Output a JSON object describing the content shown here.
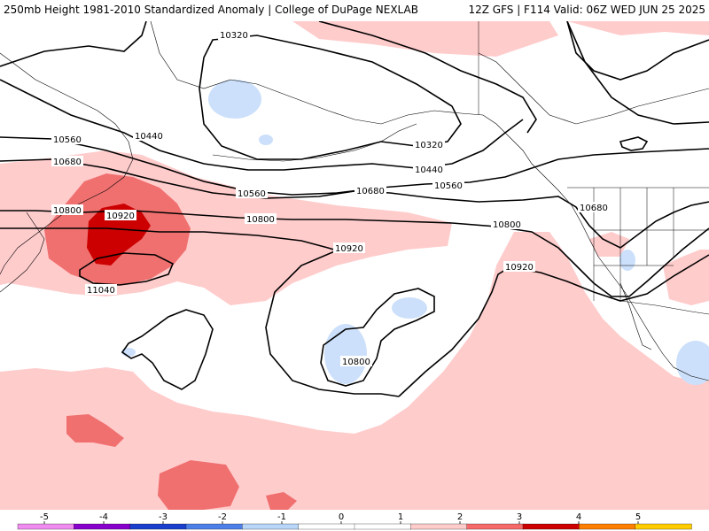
{
  "header": {
    "title_left": "250mb Height 1981-2010 Standardized Anomaly | College of DuPage NEXLAB",
    "title_right": "12Z GFS | F114 Valid: 06Z WED JUN 25 2025"
  },
  "contour_labels": {
    "c10320a": "10320",
    "c10320b": "10320",
    "c10440a": "10440",
    "c10440b": "10440",
    "c10560a": "10560",
    "c10560b": "10560",
    "c10560c": "10560",
    "c10680a": "10680",
    "c10680b": "10680",
    "c10680c": "10680",
    "c10800a": "10800",
    "c10800b": "10800",
    "c10800c": "10800",
    "c10800d": "10800",
    "c10920a": "10920",
    "c10920b": "10920",
    "c10920c": "10920",
    "c11040": "11040"
  },
  "colors": {
    "neg5": "#f08cf0",
    "neg4": "#8800cc",
    "neg3": "#1a3fcc",
    "neg2": "#4d7fe8",
    "neg1": "#b8d6f8",
    "zero": "#ffffff",
    "pos1": "#ffcccc",
    "pos2": "#f76a6a",
    "pos3": "#cc0000",
    "pos4": "#ff7f00",
    "pos5": "#ffcc00",
    "light_neg": "#cce0fb",
    "light_pos": "#ffcccc",
    "mid_pos": "#f07070",
    "dark_pos": "#cc0000"
  },
  "legend": {
    "ticks": [
      "-5",
      "-4",
      "-3",
      "-2",
      "-1",
      "0",
      "1",
      "2",
      "3",
      "4",
      "5"
    ]
  }
}
